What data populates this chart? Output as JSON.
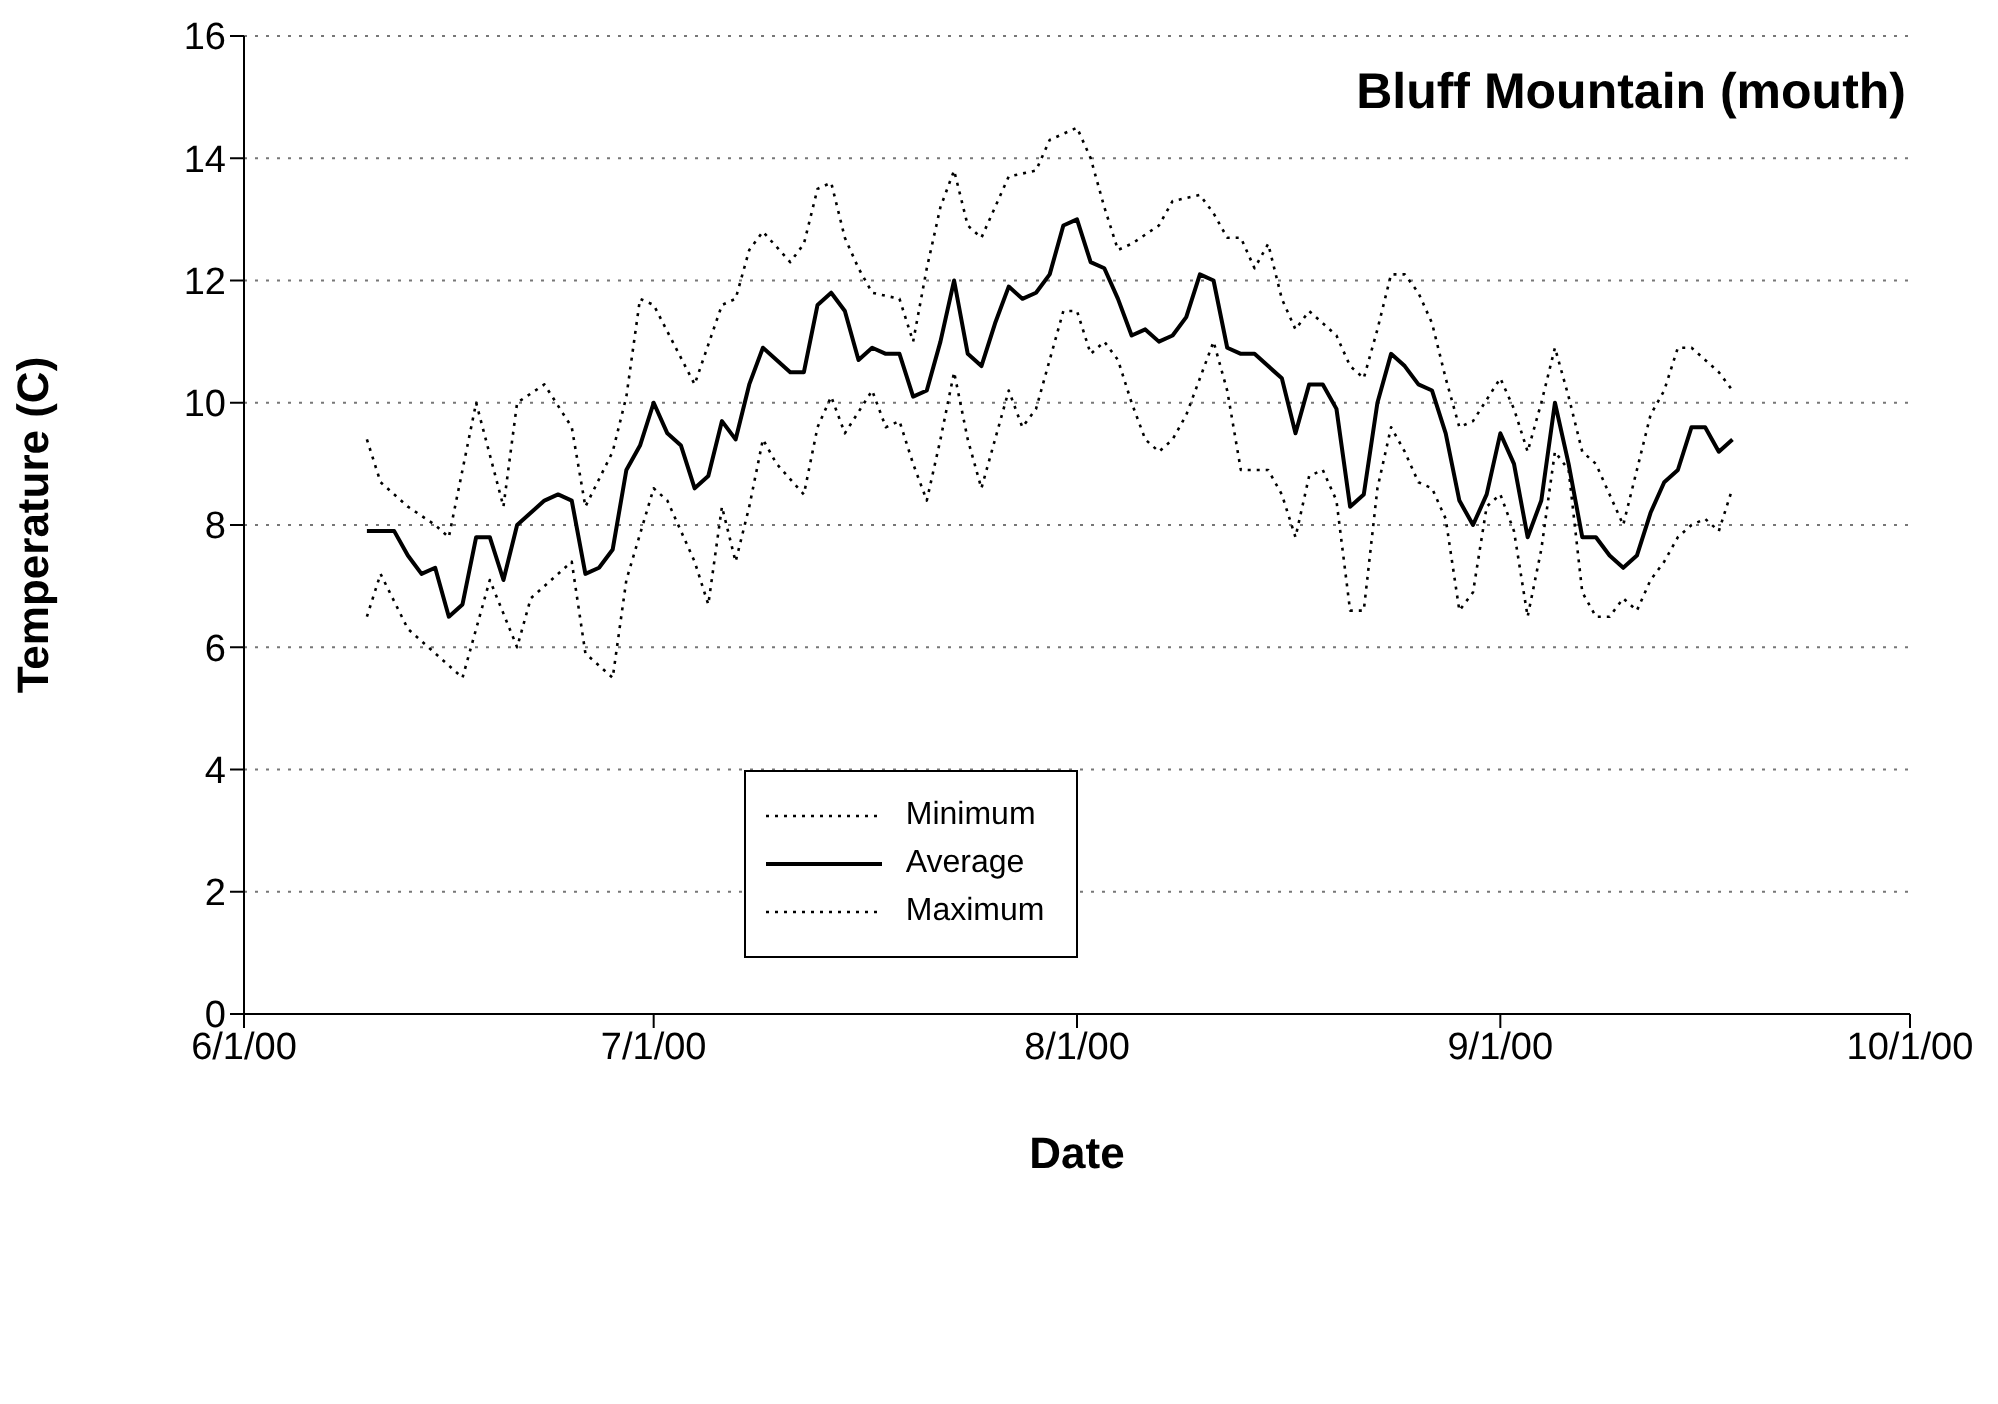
{
  "chart_data": {
    "type": "line",
    "title": "Bluff Mountain (mouth)",
    "xlabel": "Date",
    "ylabel": "Temperature (C)",
    "xlim": [
      "2000-06-01",
      "2000-10-01"
    ],
    "xticks": [
      {
        "value": "2000-06-01",
        "label": "6/1/00"
      },
      {
        "value": "2000-07-01",
        "label": "7/1/00"
      },
      {
        "value": "2000-08-01",
        "label": "8/1/00"
      },
      {
        "value": "2000-09-01",
        "label": "9/1/00"
      },
      {
        "value": "2000-10-01",
        "label": "10/1/00"
      }
    ],
    "ylim": [
      0,
      16
    ],
    "yticks": [
      0,
      2,
      4,
      6,
      8,
      10,
      12,
      14,
      16
    ],
    "grid": "y",
    "legend": "bottom",
    "marker": "none",
    "series": [
      {
        "name": "Minimum",
        "color": "#000000",
        "line_style": "dotted",
        "x": [
          "2000-06-10",
          "2000-06-11",
          "2000-06-13",
          "2000-06-17",
          "2000-06-19",
          "2000-06-21",
          "2000-06-22",
          "2000-06-25",
          "2000-06-26",
          "2000-06-28",
          "2000-06-29",
          "2000-07-01",
          "2000-07-02",
          "2000-07-04",
          "2000-07-05",
          "2000-07-06",
          "2000-07-07",
          "2000-07-08",
          "2000-07-09",
          "2000-07-10",
          "2000-07-12",
          "2000-07-13",
          "2000-07-14",
          "2000-07-15",
          "2000-07-17",
          "2000-07-18",
          "2000-07-19",
          "2000-07-20",
          "2000-07-21",
          "2000-07-22",
          "2000-07-23",
          "2000-07-24",
          "2000-07-25",
          "2000-07-26",
          "2000-07-27",
          "2000-07-28",
          "2000-07-29",
          "2000-07-30",
          "2000-07-31",
          "2000-08-01",
          "2000-08-02",
          "2000-08-03",
          "2000-08-04",
          "2000-08-05",
          "2000-08-06",
          "2000-08-07",
          "2000-08-08",
          "2000-08-09",
          "2000-08-11",
          "2000-08-12",
          "2000-08-13",
          "2000-08-14",
          "2000-08-15",
          "2000-08-16",
          "2000-08-17",
          "2000-08-18",
          "2000-08-19",
          "2000-08-20",
          "2000-08-21",
          "2000-08-22",
          "2000-08-23",
          "2000-08-24",
          "2000-08-25",
          "2000-08-26",
          "2000-08-27",
          "2000-08-28",
          "2000-08-29",
          "2000-08-30",
          "2000-08-31",
          "2000-09-01",
          "2000-09-02",
          "2000-09-03",
          "2000-09-04",
          "2000-09-05",
          "2000-09-06",
          "2000-09-07",
          "2000-09-08",
          "2000-09-09",
          "2000-09-10",
          "2000-09-11",
          "2000-09-12",
          "2000-09-13",
          "2000-09-14",
          "2000-09-15",
          "2000-09-16",
          "2000-09-17",
          "2000-09-18"
        ],
        "values": [
          6.5,
          7.2,
          6.3,
          5.5,
          7.1,
          6.0,
          6.8,
          7.4,
          5.9,
          5.5,
          7.1,
          8.6,
          8.4,
          7.4,
          6.7,
          8.3,
          7.4,
          8.3,
          9.4,
          9.0,
          8.5,
          9.6,
          10.1,
          9.5,
          10.2,
          9.6,
          9.7,
          9.0,
          8.4,
          9.4,
          10.5,
          9.4,
          8.6,
          9.4,
          10.2,
          9.6,
          9.9,
          10.7,
          11.5,
          11.5,
          10.8,
          11.0,
          10.7,
          10.0,
          9.4,
          9.2,
          9.4,
          9.8,
          11.0,
          10.2,
          8.9,
          8.9,
          8.9,
          8.5,
          7.8,
          8.8,
          8.9,
          8.4,
          6.6,
          6.6,
          8.6,
          9.6,
          9.2,
          8.7,
          8.6,
          8.1,
          6.6,
          6.9,
          8.3,
          8.5,
          7.9,
          6.5,
          7.6,
          9.2,
          8.9,
          6.9,
          6.5,
          6.5,
          6.8,
          6.6,
          7.1,
          7.4,
          7.8,
          8.0,
          8.1,
          7.9,
          8.6
        ]
      },
      {
        "name": "Average",
        "color": "#000000",
        "line_style": "solid",
        "x": [
          "2000-06-10",
          "2000-06-11",
          "2000-06-12",
          "2000-06-13",
          "2000-06-14",
          "2000-06-15",
          "2000-06-16",
          "2000-06-17",
          "2000-06-18",
          "2000-06-19",
          "2000-06-20",
          "2000-06-21",
          "2000-06-22",
          "2000-06-23",
          "2000-06-24",
          "2000-06-25",
          "2000-06-26",
          "2000-06-27",
          "2000-06-28",
          "2000-06-29",
          "2000-06-30",
          "2000-07-01",
          "2000-07-02",
          "2000-07-03",
          "2000-07-04",
          "2000-07-05",
          "2000-07-06",
          "2000-07-07",
          "2000-07-08",
          "2000-07-09",
          "2000-07-10",
          "2000-07-11",
          "2000-07-12",
          "2000-07-13",
          "2000-07-14",
          "2000-07-15",
          "2000-07-16",
          "2000-07-17",
          "2000-07-18",
          "2000-07-19",
          "2000-07-20",
          "2000-07-21",
          "2000-07-22",
          "2000-07-23",
          "2000-07-24",
          "2000-07-25",
          "2000-07-26",
          "2000-07-27",
          "2000-07-28",
          "2000-07-29",
          "2000-07-30",
          "2000-07-31",
          "2000-08-01",
          "2000-08-02",
          "2000-08-03",
          "2000-08-04",
          "2000-08-05",
          "2000-08-06",
          "2000-08-07",
          "2000-08-08",
          "2000-08-09",
          "2000-08-10",
          "2000-08-11",
          "2000-08-12",
          "2000-08-13",
          "2000-08-14",
          "2000-08-15",
          "2000-08-16",
          "2000-08-17",
          "2000-08-18",
          "2000-08-19",
          "2000-08-20",
          "2000-08-21",
          "2000-08-22",
          "2000-08-23",
          "2000-08-24",
          "2000-08-25",
          "2000-08-26",
          "2000-08-27",
          "2000-08-28",
          "2000-08-29",
          "2000-08-30",
          "2000-08-31",
          "2000-09-01",
          "2000-09-02",
          "2000-09-03",
          "2000-09-04",
          "2000-09-05",
          "2000-09-06",
          "2000-09-07",
          "2000-09-08",
          "2000-09-09",
          "2000-09-10",
          "2000-09-11",
          "2000-09-12",
          "2000-09-13",
          "2000-09-14",
          "2000-09-15",
          "2000-09-16",
          "2000-09-17",
          "2000-09-18"
        ],
        "values": [
          7.9,
          7.9,
          7.9,
          7.5,
          7.2,
          7.3,
          6.5,
          6.7,
          7.8,
          7.8,
          7.1,
          8.0,
          8.2,
          8.4,
          8.5,
          8.4,
          7.2,
          7.3,
          7.6,
          8.9,
          9.3,
          10.0,
          9.5,
          9.3,
          8.6,
          8.8,
          9.7,
          9.4,
          10.3,
          10.9,
          10.7,
          10.5,
          10.5,
          11.6,
          11.8,
          11.5,
          10.7,
          10.9,
          10.8,
          10.8,
          10.1,
          10.2,
          11.0,
          12.0,
          10.8,
          10.6,
          11.3,
          11.9,
          11.7,
          11.8,
          12.1,
          12.9,
          13.0,
          12.3,
          12.2,
          11.7,
          11.1,
          11.2,
          11.0,
          11.1,
          11.4,
          12.1,
          12.0,
          10.9,
          10.8,
          10.8,
          10.6,
          10.4,
          9.5,
          10.3,
          10.3,
          9.9,
          8.3,
          8.5,
          10.0,
          10.8,
          10.6,
          10.3,
          10.2,
          9.5,
          8.4,
          8.0,
          8.5,
          9.5,
          9.0,
          7.8,
          8.4,
          10.0,
          9.0,
          7.8,
          7.8,
          7.5,
          7.3,
          7.5,
          8.2,
          8.7,
          8.9,
          9.6,
          9.6,
          9.2,
          9.4
        ]
      },
      {
        "name": "Maximum",
        "color": "#000000",
        "line_style": "dotted",
        "x": [
          "2000-06-10",
          "2000-06-11",
          "2000-06-13",
          "2000-06-15",
          "2000-06-16",
          "2000-06-18",
          "2000-06-20",
          "2000-06-21",
          "2000-06-23",
          "2000-06-25",
          "2000-06-26",
          "2000-06-28",
          "2000-06-29",
          "2000-06-30",
          "2000-07-01",
          "2000-07-04",
          "2000-07-06",
          "2000-07-07",
          "2000-07-08",
          "2000-07-09",
          "2000-07-11",
          "2000-07-12",
          "2000-07-13",
          "2000-07-14",
          "2000-07-15",
          "2000-07-16",
          "2000-07-17",
          "2000-07-19",
          "2000-07-20",
          "2000-07-21",
          "2000-07-22",
          "2000-07-23",
          "2000-07-24",
          "2000-07-25",
          "2000-07-26",
          "2000-07-27",
          "2000-07-29",
          "2000-07-30",
          "2000-08-01",
          "2000-08-02",
          "2000-08-03",
          "2000-08-04",
          "2000-08-05",
          "2000-08-07",
          "2000-08-08",
          "2000-08-10",
          "2000-08-11",
          "2000-08-12",
          "2000-08-13",
          "2000-08-14",
          "2000-08-15",
          "2000-08-16",
          "2000-08-17",
          "2000-08-18",
          "2000-08-20",
          "2000-08-21",
          "2000-08-22",
          "2000-08-23",
          "2000-08-24",
          "2000-08-25",
          "2000-08-26",
          "2000-08-27",
          "2000-08-28",
          "2000-08-29",
          "2000-08-30",
          "2000-09-01",
          "2000-09-02",
          "2000-09-03",
          "2000-09-04",
          "2000-09-05",
          "2000-09-06",
          "2000-09-07",
          "2000-09-08",
          "2000-09-09",
          "2000-09-10",
          "2000-09-11",
          "2000-09-12",
          "2000-09-13",
          "2000-09-14",
          "2000-09-15",
          "2000-09-16",
          "2000-09-17",
          "2000-09-18"
        ],
        "values": [
          9.4,
          8.7,
          8.3,
          8.0,
          7.8,
          10.0,
          8.3,
          10.0,
          10.3,
          9.6,
          8.3,
          9.2,
          10.1,
          11.7,
          11.6,
          10.3,
          11.6,
          11.7,
          12.5,
          12.8,
          12.3,
          12.6,
          13.5,
          13.6,
          12.7,
          12.2,
          11.8,
          11.7,
          11.0,
          12.2,
          13.2,
          13.8,
          12.9,
          12.7,
          13.2,
          13.7,
          13.8,
          14.3,
          14.5,
          14.0,
          13.2,
          12.5,
          12.6,
          12.9,
          13.3,
          13.4,
          13.1,
          12.7,
          12.7,
          12.2,
          12.6,
          11.7,
          11.2,
          11.5,
          11.1,
          10.6,
          10.4,
          11.2,
          12.1,
          12.1,
          11.8,
          11.3,
          10.4,
          9.6,
          9.7,
          10.4,
          9.9,
          9.2,
          10.0,
          10.9,
          10.1,
          9.2,
          9.0,
          8.5,
          8.0,
          8.9,
          9.8,
          10.2,
          10.9,
          10.9,
          10.7,
          10.5,
          10.2
        ]
      }
    ]
  }
}
